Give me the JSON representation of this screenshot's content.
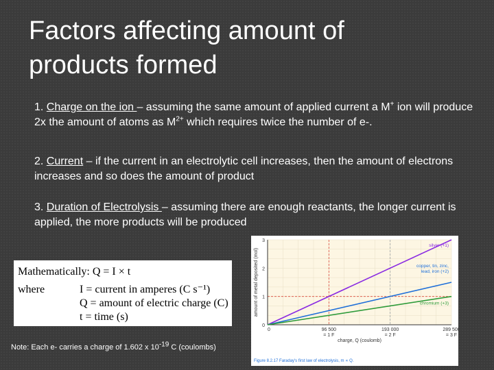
{
  "slide": {
    "title_line1": "Factors affecting amount of",
    "title_line2": "products formed"
  },
  "points": {
    "p1": {
      "num": "1.",
      "term": "Charge on the ion ",
      "text_a": "– assuming the same amount of applied current a M",
      "sup_a": "+",
      "text_b": " ion will produce 2x the amount of atoms as M",
      "sup_b": "2+",
      "text_c": " which requires twice the number of e-."
    },
    "p2": {
      "num": "2.",
      "term": "Current",
      "text": " – if the current in an electrolytic cell increases, then the amount of electrons increases and so does the amount of product"
    },
    "p3": {
      "num": "3.",
      "term": "Duration of Electrolysis ",
      "text": "– assuming there are enough reactants, the longer current is applied, the more products will be produced"
    }
  },
  "formula": {
    "line1": "Mathematically: Q = I × t",
    "line2_where": "where",
    "line2": "I = current in amperes (C s⁻¹)",
    "line3": "Q = amount of electric charge (C)",
    "line4": "t = time (s)"
  },
  "note": {
    "text": "Note: Each e- carries a charge of 1.602 x 10",
    "exp": "-19",
    "unit": " C (coulombs)"
  },
  "chart_data": {
    "type": "line",
    "ylabel": "amount of metal deposited (mol)",
    "xlabel": "charge, Q (coulomb)",
    "caption": "Figure 8.2.17 Faraday's first law of electrolysis, m ∝ Q.",
    "x_ticks": [
      {
        "value": 0,
        "label": "0",
        "sub": ""
      },
      {
        "value": 96500,
        "label": "96 500",
        "sub": "= 1 F"
      },
      {
        "value": 193000,
        "label": "193 000",
        "sub": "= 2 F"
      },
      {
        "value": 289500,
        "label": "289 500",
        "sub": "= 3 F"
      }
    ],
    "y_ticks": [
      {
        "value": 0,
        "label": "0"
      },
      {
        "value": 1,
        "label": "1"
      },
      {
        "value": 2,
        "label": "2"
      },
      {
        "value": 3,
        "label": "3"
      }
    ],
    "xlim": [
      0,
      289500
    ],
    "ylim": [
      0,
      3
    ],
    "series": [
      {
        "name": "silver (+1)",
        "color": "#8a2be2",
        "points": [
          [
            0,
            0
          ],
          [
            289500,
            3
          ]
        ]
      },
      {
        "name": "copper, tin, zinc, lead, iron (+2)",
        "color": "#1e6fd9",
        "points": [
          [
            0,
            0
          ],
          [
            289500,
            1.5
          ]
        ]
      },
      {
        "name": "chromium (+3)",
        "color": "#2e9b3a",
        "points": [
          [
            0,
            0
          ],
          [
            289500,
            1.0
          ]
        ]
      }
    ],
    "reference_lines": [
      {
        "y": 1,
        "color": "#d9473a"
      },
      {
        "x": 96500,
        "color": "#d9473a"
      },
      {
        "x": 193000,
        "color": "#9aa0a6"
      }
    ],
    "grid": true
  }
}
